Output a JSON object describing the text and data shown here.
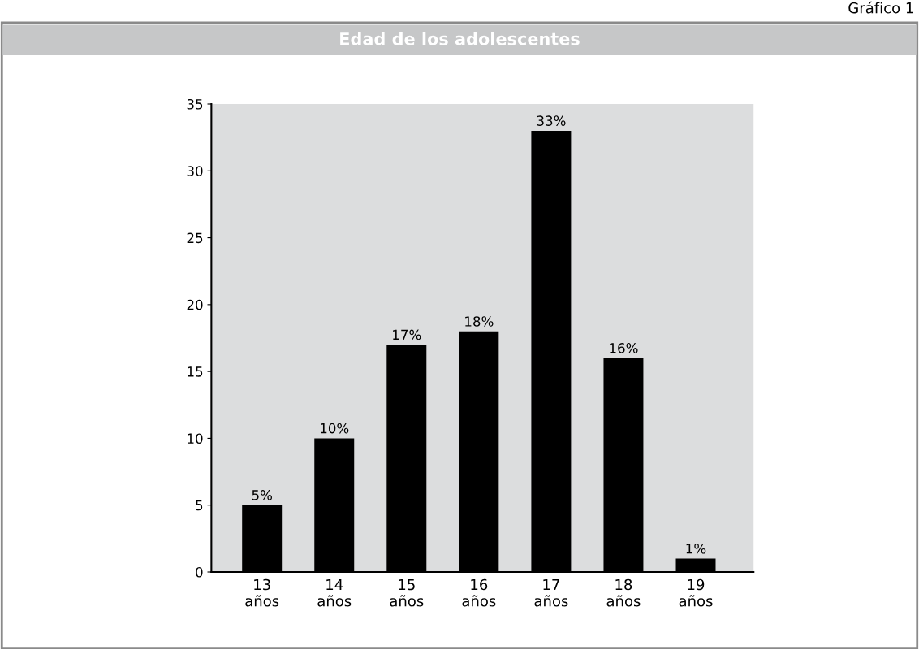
{
  "chart_data": {
    "type": "bar",
    "title": "Edad de los adolescentes",
    "annotations": [
      "Gráfico 1"
    ],
    "categories": [
      "13\naños",
      "14\naños",
      "15\naños",
      "16\naños",
      "17\naños",
      "18\naños",
      "19\naños"
    ],
    "values": [
      5,
      10,
      17,
      18,
      33,
      16,
      1
    ],
    "value_labels": [
      "5%",
      "10%",
      "17%",
      "18%",
      "33%",
      "16%",
      "1%"
    ],
    "color": "#000000",
    "ylim": [
      0,
      35
    ],
    "yticks": [
      0,
      5,
      10,
      15,
      20,
      25,
      30,
      35
    ],
    "grid": false,
    "legend": false
  }
}
